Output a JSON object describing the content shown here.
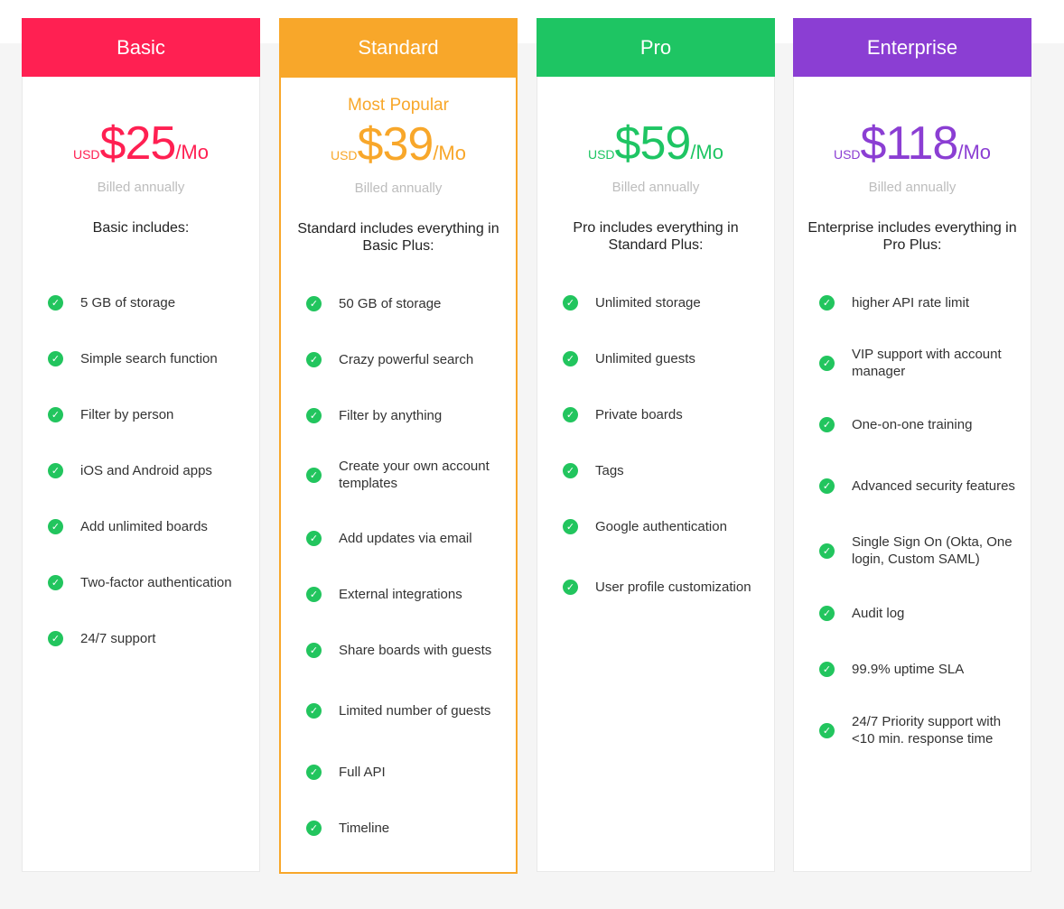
{
  "plans": [
    {
      "name": "Basic",
      "color": "#ff2052",
      "currency": "USD",
      "amount": "$25",
      "period": "/Mo",
      "billing": "Billed annually",
      "includes": "Basic includes:",
      "features": [
        "5 GB of storage",
        "Simple search function",
        "Filter by person",
        "iOS and Android apps",
        "Add unlimited boards",
        "Two-factor authentication",
        "24/7 support"
      ]
    },
    {
      "name": "Standard",
      "color": "#f8a72a",
      "badge": "Most Popular",
      "currency": "USD",
      "amount": "$39",
      "period": "/Mo",
      "billing": "Billed annually",
      "includes": "Standard includes everything in Basic Plus:",
      "features": [
        "50 GB of storage",
        "Crazy powerful search",
        "Filter by anything",
        "Create your own account templates",
        "Add updates via email",
        "External integrations",
        "Share boards with guests",
        "Limited number of guests",
        "Full API",
        "Timeline"
      ]
    },
    {
      "name": "Pro",
      "color": "#1ec563",
      "currency": "USD",
      "amount": "$59",
      "period": "/Mo",
      "billing": "Billed annually",
      "includes": "Pro includes everything in Standard Plus:",
      "features": [
        "Unlimited storage",
        "Unlimited guests",
        "Private boards",
        "Tags",
        "Google authentication",
        "User profile customization"
      ]
    },
    {
      "name": "Enterprise",
      "color": "#8b3ed3",
      "currency": "USD",
      "amount": "$118",
      "period": "/Mo",
      "billing": "Billed annually",
      "includes": "Enterprise includes everything in Pro Plus:",
      "features": [
        "higher API rate limit",
        "VIP support with account manager",
        "One-on-one training",
        "Advanced security features",
        "Single Sign On (Okta, One login, Custom SAML)",
        "Audit log",
        "99.9% uptime SLA",
        "24/7 Priority support with <10 min. response time"
      ]
    }
  ],
  "check_icon": "check-circle-icon",
  "check_color": "#22c55e"
}
